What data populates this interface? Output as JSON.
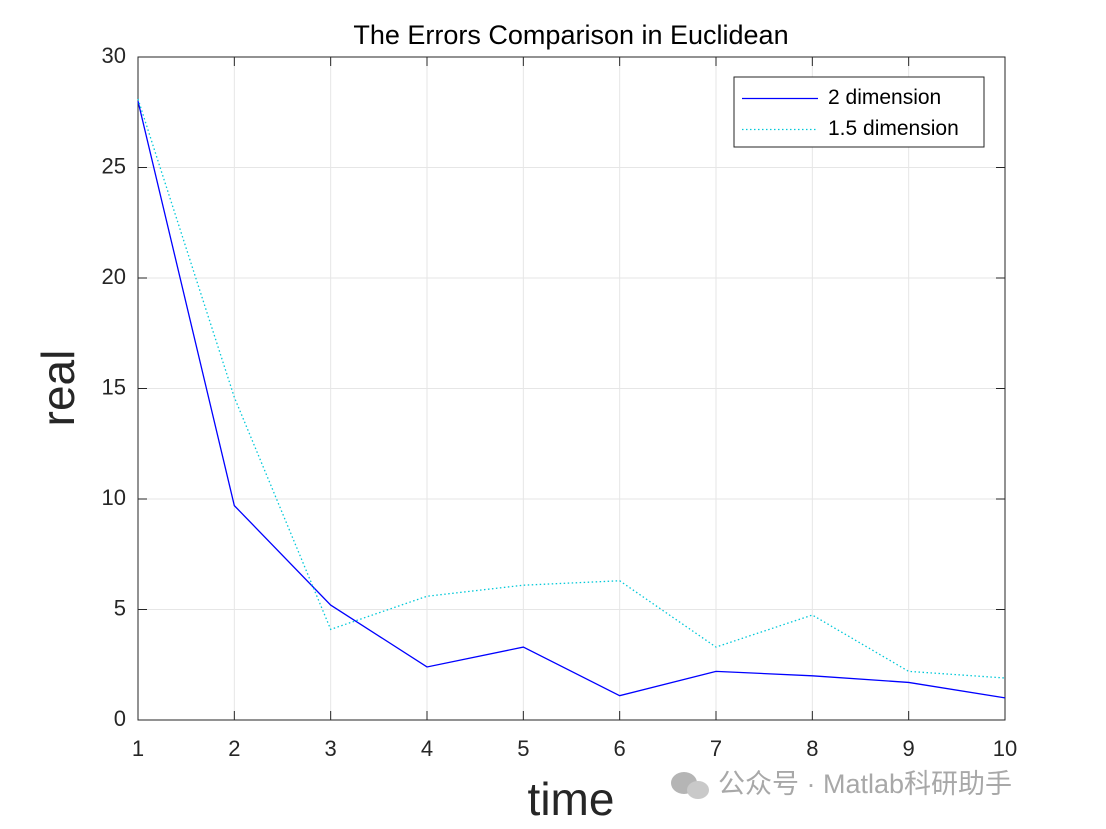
{
  "chart_data": {
    "type": "line",
    "title": "The Errors Comparison in Euclidean",
    "x_label": "time",
    "y_label": "real",
    "x": [
      1,
      2,
      3,
      4,
      5,
      6,
      7,
      8,
      9,
      10
    ],
    "series": [
      {
        "name": "2 dimension",
        "color": "#0000ff",
        "dash": "solid",
        "values": [
          28.0,
          9.7,
          5.2,
          2.4,
          3.3,
          1.1,
          2.2,
          2.0,
          1.7,
          1.0
        ]
      },
      {
        "name": "1.5 dimension",
        "color": "#00c8d8",
        "dash": "dotted",
        "values": [
          28.1,
          14.6,
          4.1,
          5.6,
          6.1,
          6.3,
          3.3,
          4.75,
          2.2,
          1.9
        ]
      }
    ],
    "xlim": [
      1,
      10
    ],
    "xticks": [
      1,
      2,
      3,
      4,
      5,
      6,
      7,
      8,
      9,
      10
    ],
    "ylim": [
      0,
      30
    ],
    "yticks": [
      0,
      5,
      10,
      15,
      20,
      25,
      30
    ],
    "grid": true,
    "legend_position": "top-right",
    "watermark": "公众号 · Matlab科研助手"
  }
}
